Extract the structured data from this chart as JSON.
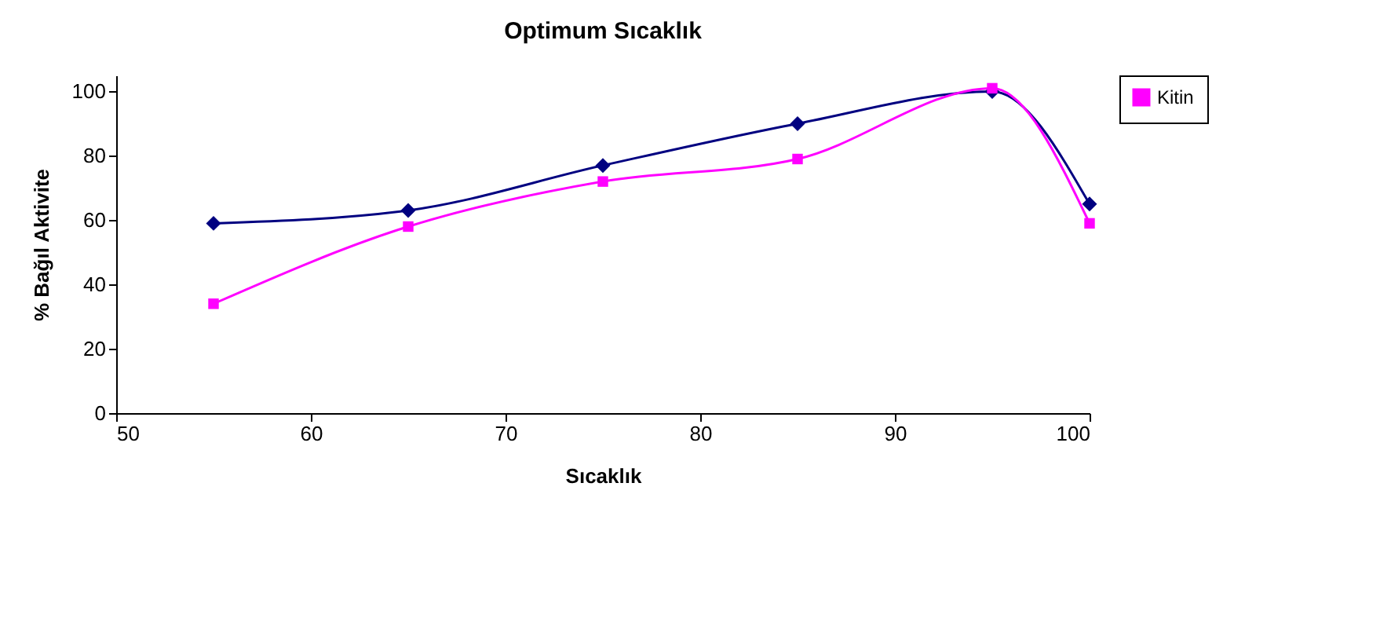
{
  "chart_data": {
    "type": "line",
    "title": "Optimum Sıcaklık",
    "xlabel": "Sıcaklık",
    "ylabel": "% Bağıl Aktivite",
    "x": [
      55,
      65,
      75,
      85,
      95,
      100
    ],
    "series": [
      {
        "color": "#000080",
        "marker": "diamond",
        "values": [
          59,
          63,
          77,
          90,
          100,
          65
        ]
      },
      {
        "name": "Kitin",
        "color": "#ff00ff",
        "marker": "square",
        "values": [
          34,
          58,
          72,
          79,
          101,
          59
        ]
      }
    ],
    "xlim": [
      50,
      100
    ],
    "xticks": [
      50,
      60,
      70,
      80,
      90,
      100
    ],
    "ylim": [
      0,
      105
    ],
    "yticks": [
      0,
      20,
      40,
      60,
      80,
      100
    ],
    "grid": false,
    "legend": "right",
    "line_style": "solid"
  }
}
